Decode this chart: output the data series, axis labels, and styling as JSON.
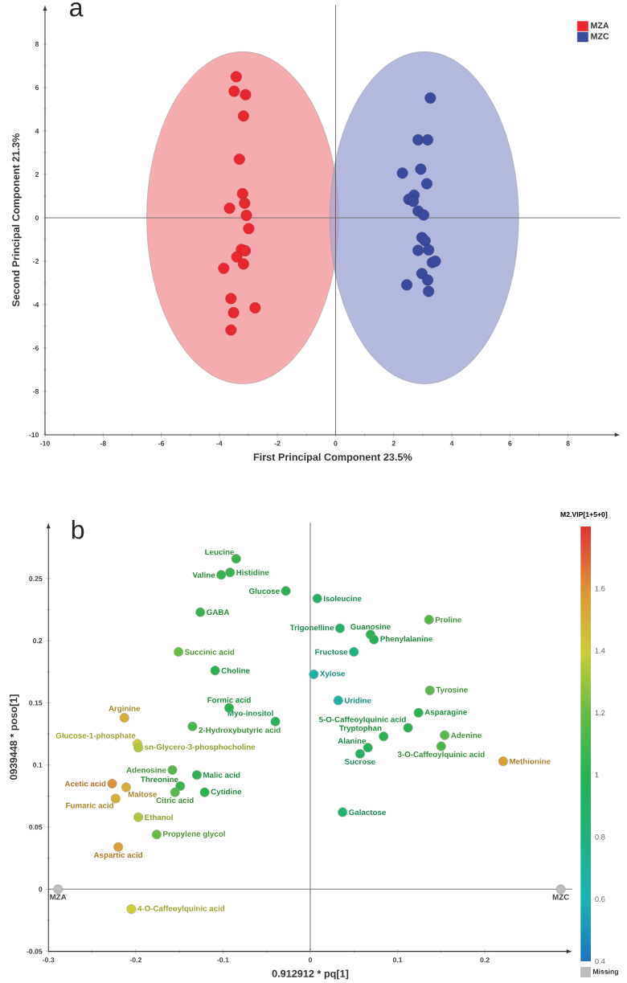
{
  "chart_data": [
    {
      "type": "scatter",
      "title": "a",
      "xlabel": "First Principal Component 23.5%",
      "ylabel": "Second Principal Component 21.3%",
      "xlim": [
        -10,
        9.8
      ],
      "ylim": [
        -10,
        9.8
      ],
      "xticks": [
        -10,
        -8,
        -6,
        -4,
        -2,
        0,
        2,
        4,
        6,
        8
      ],
      "yticks": [
        -10,
        -8,
        -6,
        -4,
        -2,
        0,
        2,
        4,
        6,
        8
      ],
      "marker": "circle",
      "legend": "top right",
      "grid": false,
      "ref_lines": [
        {
          "axis": "x",
          "value": 0
        },
        {
          "axis": "y",
          "value": 0
        }
      ],
      "series": [
        {
          "name": "MZA",
          "color": "#e8282d",
          "x": [
            -3.42,
            -3.49,
            -3.1,
            -3.17,
            -3.31,
            -3.2,
            -3.13,
            -3.65,
            -3.07,
            -2.99,
            -3.24,
            -3.11,
            -3.4,
            -3.17,
            -3.85,
            -3.6,
            -3.51,
            -2.77,
            -3.6
          ],
          "values": [
            6.5,
            5.83,
            5.67,
            4.69,
            2.7,
            1.11,
            0.67,
            0.44,
            0.11,
            -0.5,
            -1.46,
            -1.52,
            -1.8,
            -2.13,
            -2.33,
            -3.72,
            -4.37,
            -4.15,
            -5.17
          ]
        },
        {
          "name": "MZC",
          "color": "#3a4a9c",
          "x": [
            3.26,
            2.84,
            3.17,
            2.93,
            2.3,
            3.14,
            2.7,
            2.52,
            2.67,
            2.84,
            3.03,
            2.97,
            3.08,
            2.84,
            3.2,
            3.33,
            3.43,
            2.97,
            3.17,
            2.45,
            3.2
          ],
          "values": [
            5.52,
            3.59,
            3.59,
            2.24,
            2.06,
            1.57,
            1.04,
            0.85,
            0.76,
            0.31,
            0.13,
            -0.91,
            -1.06,
            -1.5,
            -1.48,
            -2.06,
            -2.0,
            -2.57,
            -2.87,
            -3.09,
            -3.39
          ]
        }
      ]
    },
    {
      "type": "scatter",
      "title": "b",
      "xlabel": "0.912912 * pq[1]",
      "ylabel": "0939448 * poso[1]",
      "clabel": "M2.VIP[1+5+0]",
      "xlim": [
        -0.3,
        0.3
      ],
      "ylim": [
        -0.05,
        0.295
      ],
      "xticks": [
        -0.3,
        -0.2,
        -0.1,
        0,
        0.1,
        0.2
      ],
      "yticks": [
        -0.05,
        0,
        0.05,
        0.1,
        0.15,
        0.2,
        0.25
      ],
      "clim": [
        0.4,
        1.8
      ],
      "cticks": [
        0.4,
        0.6,
        0.8,
        1,
        1.2,
        1.4,
        1.6
      ],
      "marker": "circle",
      "grid": false,
      "ref_lines": [
        {
          "axis": "x",
          "value": 0
        },
        {
          "axis": "y",
          "value": 0
        }
      ],
      "series": [
        {
          "x": [
            -0.085,
            -0.092,
            -0.102,
            -0.028,
            -0.126,
            -0.151,
            -0.109,
            -0.093,
            -0.213,
            -0.04,
            -0.135,
            -0.198,
            -0.197,
            -0.158,
            -0.13,
            -0.149,
            -0.227,
            -0.211,
            -0.155,
            -0.121,
            -0.223,
            -0.197,
            -0.176,
            -0.22,
            -0.205,
            0.008,
            0.136,
            0.034,
            0.069,
            0.073,
            0.05,
            0.004,
            0.137,
            0.032,
            0.124,
            0.112,
            0.154,
            0.084,
            0.15,
            0.066,
            0.057,
            0.221,
            0.037
          ],
          "values": [
            0.266,
            0.255,
            0.253,
            0.24,
            0.223,
            0.191,
            0.176,
            0.146,
            0.138,
            0.135,
            0.131,
            0.117,
            0.114,
            0.096,
            0.092,
            0.083,
            0.085,
            0.082,
            0.078,
            0.078,
            0.073,
            0.058,
            0.044,
            0.034,
            -0.016,
            0.234,
            0.217,
            0.21,
            0.205,
            0.201,
            0.191,
            0.173,
            0.16,
            0.152,
            0.142,
            0.13,
            0.124,
            0.123,
            0.115,
            0.114,
            0.109,
            0.103,
            0.062
          ],
          "colors": [
            "#37B44D",
            "#37B44D",
            "#37B44D",
            "#28B250",
            "#37B44D",
            "#64BC46",
            "#28B250",
            "#28B250",
            "#D5AF37",
            "#25B25B",
            "#46B74B",
            "#CDCD37",
            "#B2C83A",
            "#55B948",
            "#28B250",
            "#37B44D",
            "#DE9137",
            "#D5AF37",
            "#55B948",
            "#28B250",
            "#D5AF37",
            "#B2C83A",
            "#64BC46",
            "#D9A037",
            "#CDCD37",
            "#23B266",
            "#55B948",
            "#23B266",
            "#28B250",
            "#28B250",
            "#1EB27D",
            "#19B3A6",
            "#55B948",
            "#19B3A6",
            "#28B250",
            "#28B250",
            "#55B948",
            "#28B250",
            "#46B74B",
            "#25B25B",
            "#23B266",
            "#D9A037",
            "#20B271"
          ],
          "cvalues": [
            1.05,
            1.05,
            1.05,
            1.0,
            1.05,
            1.2,
            1.0,
            1.0,
            1.5,
            0.95,
            1.1,
            1.4,
            1.35,
            1.15,
            1.0,
            1.05,
            1.6,
            1.5,
            1.15,
            1.0,
            1.5,
            1.35,
            1.2,
            1.55,
            1.4,
            0.9,
            1.15,
            0.9,
            1.0,
            1.0,
            0.8,
            0.65,
            1.15,
            0.65,
            1.0,
            1.0,
            1.15,
            1.0,
            1.1,
            0.95,
            0.9,
            1.55,
            0.85
          ]
        },
        {
          "name": "Missing",
          "color": "#bdbdbd",
          "x": [
            -0.289,
            0.287
          ],
          "values": [
            0,
            0
          ]
        }
      ],
      "annotations": [
        {
          "text": "Leucine",
          "x": -0.085,
          "y": 0.266
        },
        {
          "text": "Histidine",
          "x": -0.092,
          "y": 0.255
        },
        {
          "text": "Valine",
          "x": -0.102,
          "y": 0.253
        },
        {
          "text": "Glucose",
          "x": -0.028,
          "y": 0.24
        },
        {
          "text": "GABA",
          "x": -0.126,
          "y": 0.223
        },
        {
          "text": "Succinic acid",
          "x": -0.151,
          "y": 0.191
        },
        {
          "text": "Choline",
          "x": -0.109,
          "y": 0.176
        },
        {
          "text": "Formic acid",
          "x": -0.093,
          "y": 0.146
        },
        {
          "text": "Arginine",
          "x": -0.213,
          "y": 0.138
        },
        {
          "text": "Myo-inositol",
          "x": -0.04,
          "y": 0.135
        },
        {
          "text": "2-Hydroxybutyric acid",
          "x": -0.135,
          "y": 0.131
        },
        {
          "text": "Glucose-1-phosphate",
          "x": -0.198,
          "y": 0.117
        },
        {
          "text": "sn-Glycero-3-phosphocholine",
          "x": -0.197,
          "y": 0.114
        },
        {
          "text": "Adenosine",
          "x": -0.158,
          "y": 0.096
        },
        {
          "text": "Malic acid",
          "x": -0.13,
          "y": 0.092
        },
        {
          "text": "Threonine",
          "x": -0.149,
          "y": 0.083
        },
        {
          "text": "Acetic acid",
          "x": -0.227,
          "y": 0.085
        },
        {
          "text": "Maltose",
          "x": -0.211,
          "y": 0.082
        },
        {
          "text": "Citric acid",
          "x": -0.155,
          "y": 0.078
        },
        {
          "text": "Cytidine",
          "x": -0.121,
          "y": 0.078
        },
        {
          "text": "Fumaric acid",
          "x": -0.223,
          "y": 0.073
        },
        {
          "text": "Ethanol",
          "x": -0.197,
          "y": 0.058
        },
        {
          "text": "Propylene glycol",
          "x": -0.176,
          "y": 0.044
        },
        {
          "text": "Aspartic acid",
          "x": -0.22,
          "y": 0.034
        },
        {
          "text": "4-O-Caffeoylquinic acid",
          "x": -0.205,
          "y": -0.016
        },
        {
          "text": "Isoleucine",
          "x": 0.008,
          "y": 0.234
        },
        {
          "text": "Proline",
          "x": 0.136,
          "y": 0.217
        },
        {
          "text": "Trigonelline",
          "x": 0.034,
          "y": 0.21
        },
        {
          "text": "Guanosine",
          "x": 0.069,
          "y": 0.205
        },
        {
          "text": "Phenylalanine",
          "x": 0.073,
          "y": 0.201
        },
        {
          "text": "Fructose",
          "x": 0.05,
          "y": 0.191
        },
        {
          "text": "Xylose",
          "x": 0.004,
          "y": 0.173
        },
        {
          "text": "Tyrosine",
          "x": 0.137,
          "y": 0.16
        },
        {
          "text": "Uridine",
          "x": 0.032,
          "y": 0.152
        },
        {
          "text": "Asparagine",
          "x": 0.124,
          "y": 0.142
        },
        {
          "text": "5-O-Caffeoylquinic acid",
          "x": 0.112,
          "y": 0.13
        },
        {
          "text": "Adenine",
          "x": 0.154,
          "y": 0.124
        },
        {
          "text": "Tryptophan",
          "x": 0.084,
          "y": 0.123
        },
        {
          "text": "3-O-Caffeoylquinic acid",
          "x": 0.15,
          "y": 0.115
        },
        {
          "text": "Alanine",
          "x": 0.066,
          "y": 0.114
        },
        {
          "text": "Sucrose",
          "x": 0.057,
          "y": 0.109
        },
        {
          "text": "Methionine",
          "x": 0.221,
          "y": 0.103
        },
        {
          "text": "Galactose",
          "x": 0.037,
          "y": 0.062
        },
        {
          "text": "MZA",
          "x": -0.289,
          "y": 0
        },
        {
          "text": "MZC",
          "x": 0.287,
          "y": 0
        }
      ]
    }
  ]
}
